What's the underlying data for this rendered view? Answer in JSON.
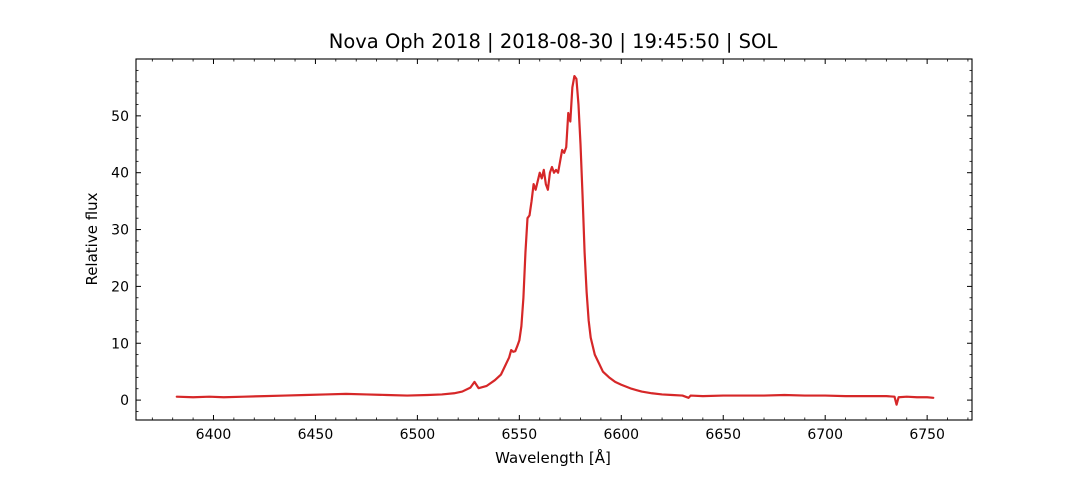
{
  "chart_data": {
    "type": "line",
    "title": "Nova Oph 2018 | 2018-08-30 | 19:45:50 | SOL",
    "xlabel": "Wavelength [Å]",
    "ylabel": "Relative flux",
    "xlim": [
      6362,
      6772
    ],
    "ylim": [
      -3.5,
      60
    ],
    "xticks": [
      6400,
      6450,
      6500,
      6550,
      6600,
      6650,
      6700,
      6750
    ],
    "yticks": [
      0,
      10,
      20,
      30,
      40,
      50
    ],
    "xtick_labels": [
      "6400",
      "6450",
      "6500",
      "6550",
      "6600",
      "6650",
      "6700",
      "6750"
    ],
    "ytick_labels": [
      "0",
      "10",
      "20",
      "30",
      "40",
      "50"
    ],
    "x_minor_step": 10,
    "y_minor_step": 2,
    "grid": false,
    "line_color": "#d62728",
    "series": [
      {
        "x": [
          6382,
          6390,
          6398,
          6405,
          6415,
          6425,
          6435,
          6445,
          6455,
          6465,
          6475,
          6485,
          6495,
          6505,
          6512,
          6518,
          6522,
          6526,
          6528,
          6530,
          6534,
          6538,
          6541,
          6543,
          6545,
          6546,
          6547,
          6548,
          6549,
          6550,
          6551,
          6552,
          6553,
          6554,
          6555,
          6556,
          6557,
          6558,
          6559,
          6560,
          6561,
          6562,
          6563,
          6564,
          6565,
          6566,
          6567,
          6568,
          6569,
          6570,
          6571,
          6572,
          6573,
          6574,
          6575,
          6576,
          6577,
          6578,
          6579,
          6580,
          6581,
          6582,
          6583,
          6584,
          6585,
          6587,
          6589,
          6591,
          6594,
          6597,
          6600,
          6605,
          6610,
          6615,
          6620,
          6625,
          6630,
          6633,
          6634,
          6640,
          6650,
          6660,
          6670,
          6680,
          6690,
          6700,
          6710,
          6720,
          6730,
          6734,
          6735,
          6736,
          6740,
          6745,
          6750,
          6753
        ],
        "y": [
          0.6,
          0.5,
          0.6,
          0.5,
          0.6,
          0.7,
          0.8,
          0.9,
          1.0,
          1.1,
          1.0,
          0.9,
          0.8,
          0.9,
          1.0,
          1.2,
          1.5,
          2.2,
          3.2,
          2.1,
          2.5,
          3.5,
          4.5,
          6.0,
          7.5,
          8.8,
          8.5,
          8.6,
          9.5,
          10.5,
          13.0,
          18.0,
          26.0,
          32.0,
          32.5,
          35.0,
          38.0,
          37.0,
          38.5,
          40.0,
          39.0,
          40.5,
          38.0,
          37.0,
          40.0,
          41.0,
          40.0,
          40.5,
          40.0,
          42.0,
          44.0,
          43.5,
          44.5,
          50.5,
          49.0,
          55.0,
          57.0,
          56.5,
          52.0,
          45.0,
          36.0,
          26.0,
          19.0,
          14.0,
          11.0,
          8.0,
          6.5,
          5.0,
          4.0,
          3.2,
          2.7,
          2.0,
          1.5,
          1.2,
          1.0,
          0.9,
          0.8,
          0.4,
          0.8,
          0.7,
          0.8,
          0.8,
          0.8,
          0.9,
          0.8,
          0.8,
          0.7,
          0.7,
          0.7,
          0.6,
          -0.8,
          0.5,
          0.6,
          0.5,
          0.5,
          0.4
        ]
      }
    ]
  }
}
